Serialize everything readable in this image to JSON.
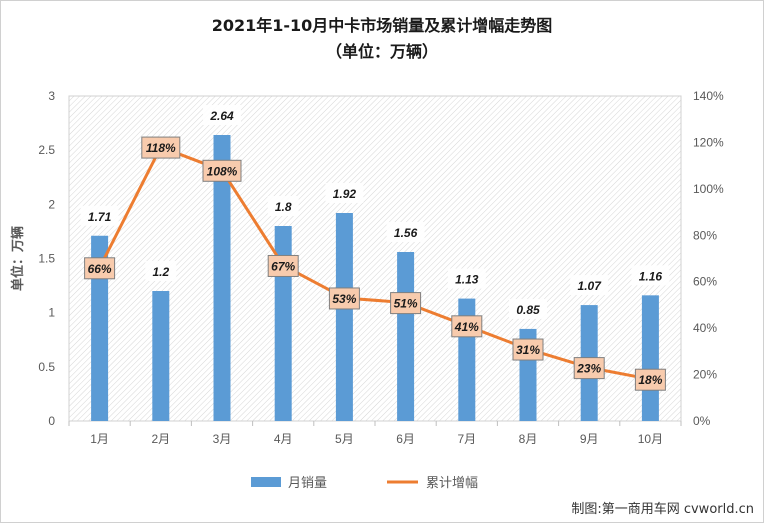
{
  "chart_data": {
    "type": "bar+line",
    "title": "2021年1-10月中卡市场销量及累计增幅走势图",
    "subtitle": "（单位：万辆）",
    "ylabel": "单位：万辆",
    "categories": [
      "1月",
      "2月",
      "3月",
      "4月",
      "5月",
      "6月",
      "7月",
      "8月",
      "9月",
      "10月"
    ],
    "series": [
      {
        "name": "月销量",
        "type": "bar",
        "axis": "left",
        "color": "#5b9bd5",
        "values": [
          1.71,
          1.2,
          2.64,
          1.8,
          1.92,
          1.56,
          1.13,
          0.85,
          1.07,
          1.16
        ],
        "labels": [
          "1.71",
          "1.2",
          "2.64",
          "1.8",
          "1.92",
          "1.56",
          "1.13",
          "0.85",
          "1.07",
          "1.16"
        ]
      },
      {
        "name": "累计增幅",
        "type": "line",
        "axis": "right",
        "color": "#ed7d31",
        "values": [
          66,
          118,
          108,
          67,
          53,
          51,
          41,
          31,
          23,
          18
        ],
        "labels": [
          "66%",
          "118%",
          "108%",
          "67%",
          "53%",
          "51%",
          "41%",
          "31%",
          "23%",
          "18%"
        ]
      }
    ],
    "ylim_left": [
      0,
      3
    ],
    "yticks_left": [
      "0",
      "0.5",
      "1",
      "1.5",
      "2",
      "2.5",
      "3"
    ],
    "ylim_right": [
      0,
      140
    ],
    "yticks_right": [
      "0%",
      "20%",
      "40%",
      "60%",
      "80%",
      "100%",
      "120%",
      "140%"
    ],
    "legend_position": "bottom",
    "plot_background": "hatched",
    "credit": "制图:第一商用车网 cvworld.cn"
  }
}
